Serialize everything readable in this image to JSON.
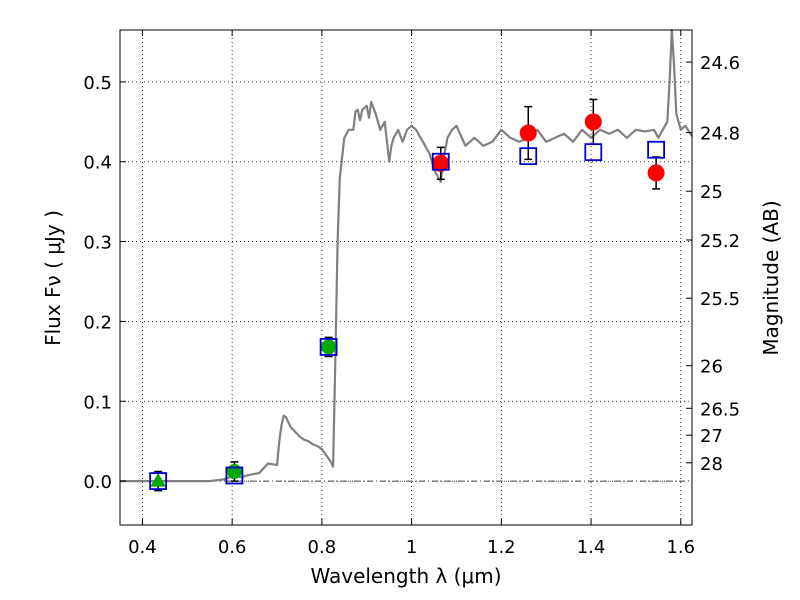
{
  "chart_data": {
    "type": "scatter",
    "xlabel": "Wavelength  λ (μm)",
    "ylabel": "Flux  Fν  ( μJy )",
    "ylabel_right": "Magnitude (AB)",
    "xlim": [
      0.35,
      1.625
    ],
    "ylim": [
      -0.055,
      0.565
    ],
    "grid": true,
    "x_ticks": [
      0.4,
      0.6,
      0.8,
      1.0,
      1.2,
      1.4,
      1.6
    ],
    "x_tick_labels": [
      "0.4",
      "0.6",
      "0.8",
      "1",
      "1.2",
      "1.4",
      "1.6"
    ],
    "y_ticks": [
      0.0,
      0.1,
      0.2,
      0.3,
      0.4,
      0.5
    ],
    "y_tick_labels": [
      "0.0",
      "0.1",
      "0.2",
      "0.3",
      "0.4",
      "0.5"
    ],
    "right_ticks": [
      {
        "label": "24.6",
        "mag": 24.6
      },
      {
        "label": "24.8",
        "mag": 24.8
      },
      {
        "label": "25",
        "mag": 25.0
      },
      {
        "label": "25.2",
        "mag": 25.2
      },
      {
        "label": "25.5",
        "mag": 25.5
      },
      {
        "label": "26",
        "mag": 26.0
      },
      {
        "label": "26.5",
        "mag": 26.5
      },
      {
        "label": "27",
        "mag": 27.0
      },
      {
        "label": "28",
        "mag": 28.0
      }
    ],
    "zero_line": 0.0,
    "colors": {
      "model": "#808080",
      "observed": "#ff0000",
      "upper_limit": "#00aa00",
      "model_photometry": "#0000cc",
      "errorbar": "#000000"
    },
    "series": [
      {
        "kind": "line",
        "points": [
          [
            0.35,
            0.0
          ],
          [
            0.5,
            0.0
          ],
          [
            0.55,
            0.0
          ],
          [
            0.58,
            0.002
          ],
          [
            0.6,
            0.006
          ],
          [
            0.62,
            0.005
          ],
          [
            0.64,
            0.008
          ],
          [
            0.66,
            0.01
          ],
          [
            0.68,
            0.022
          ],
          [
            0.7,
            0.02
          ],
          [
            0.705,
            0.05
          ],
          [
            0.71,
            0.07
          ],
          [
            0.715,
            0.082
          ],
          [
            0.72,
            0.08
          ],
          [
            0.73,
            0.068
          ],
          [
            0.74,
            0.062
          ],
          [
            0.75,
            0.056
          ],
          [
            0.76,
            0.052
          ],
          [
            0.77,
            0.05
          ],
          [
            0.78,
            0.046
          ],
          [
            0.79,
            0.044
          ],
          [
            0.8,
            0.04
          ],
          [
            0.81,
            0.032
          ],
          [
            0.82,
            0.024
          ],
          [
            0.825,
            0.018
          ],
          [
            0.83,
            0.15
          ],
          [
            0.835,
            0.3
          ],
          [
            0.84,
            0.38
          ],
          [
            0.85,
            0.43
          ],
          [
            0.86,
            0.44
          ],
          [
            0.87,
            0.44
          ],
          [
            0.875,
            0.463
          ],
          [
            0.88,
            0.465
          ],
          [
            0.885,
            0.452
          ],
          [
            0.89,
            0.465
          ],
          [
            0.9,
            0.47
          ],
          [
            0.905,
            0.455
          ],
          [
            0.91,
            0.475
          ],
          [
            0.92,
            0.46
          ],
          [
            0.93,
            0.44
          ],
          [
            0.94,
            0.45
          ],
          [
            0.95,
            0.4
          ],
          [
            0.955,
            0.42
          ],
          [
            0.96,
            0.43
          ],
          [
            0.97,
            0.44
          ],
          [
            0.98,
            0.425
          ],
          [
            0.99,
            0.44
          ],
          [
            1.0,
            0.445
          ],
          [
            1.01,
            0.44
          ],
          [
            1.02,
            0.43
          ],
          [
            1.03,
            0.42
          ],
          [
            1.04,
            0.41
          ],
          [
            1.05,
            0.39
          ],
          [
            1.06,
            0.38
          ],
          [
            1.065,
            0.375
          ],
          [
            1.07,
            0.4
          ],
          [
            1.08,
            0.43
          ],
          [
            1.09,
            0.44
          ],
          [
            1.1,
            0.445
          ],
          [
            1.12,
            0.42
          ],
          [
            1.14,
            0.43
          ],
          [
            1.16,
            0.42
          ],
          [
            1.18,
            0.425
          ],
          [
            1.2,
            0.44
          ],
          [
            1.22,
            0.43
          ],
          [
            1.24,
            0.425
          ],
          [
            1.26,
            0.43
          ],
          [
            1.28,
            0.44
          ],
          [
            1.3,
            0.425
          ],
          [
            1.32,
            0.43
          ],
          [
            1.34,
            0.435
          ],
          [
            1.36,
            0.425
          ],
          [
            1.38,
            0.44
          ],
          [
            1.4,
            0.43
          ],
          [
            1.42,
            0.44
          ],
          [
            1.44,
            0.435
          ],
          [
            1.46,
            0.44
          ],
          [
            1.48,
            0.43
          ],
          [
            1.5,
            0.44
          ],
          [
            1.52,
            0.438
          ],
          [
            1.54,
            0.44
          ],
          [
            1.55,
            0.43
          ],
          [
            1.56,
            0.44
          ],
          [
            1.57,
            0.45
          ],
          [
            1.575,
            0.5
          ],
          [
            1.58,
            0.565
          ],
          [
            1.585,
            0.52
          ],
          [
            1.59,
            0.46
          ],
          [
            1.6,
            0.44
          ],
          [
            1.61,
            0.445
          ],
          [
            1.625,
            0.432
          ]
        ]
      },
      {
        "kind": "points",
        "marker": "circle",
        "points": [
          {
            "x": 1.065,
            "y": 0.398,
            "err": 0.02
          },
          {
            "x": 1.26,
            "y": 0.436,
            "err": 0.033
          },
          {
            "x": 1.405,
            "y": 0.45,
            "err": 0.028
          },
          {
            "x": 1.545,
            "y": 0.386,
            "err": 0.02
          }
        ]
      },
      {
        "kind": "points",
        "marker": "circle",
        "points": [
          {
            "x": 0.605,
            "y": 0.012,
            "err": 0.012
          },
          {
            "x": 0.815,
            "y": 0.168,
            "err": 0.012
          }
        ]
      },
      {
        "kind": "points",
        "marker": "triangle",
        "points": [
          {
            "x": 0.435,
            "y": 0.0,
            "err": 0.012
          }
        ]
      },
      {
        "kind": "points",
        "marker": "square",
        "points": [
          {
            "x": 0.435,
            "y": 0.0
          },
          {
            "x": 0.605,
            "y": 0.007
          },
          {
            "x": 0.815,
            "y": 0.168
          },
          {
            "x": 1.065,
            "y": 0.4
          },
          {
            "x": 1.26,
            "y": 0.407
          },
          {
            "x": 1.405,
            "y": 0.412
          },
          {
            "x": 1.545,
            "y": 0.415
          }
        ]
      }
    ]
  }
}
